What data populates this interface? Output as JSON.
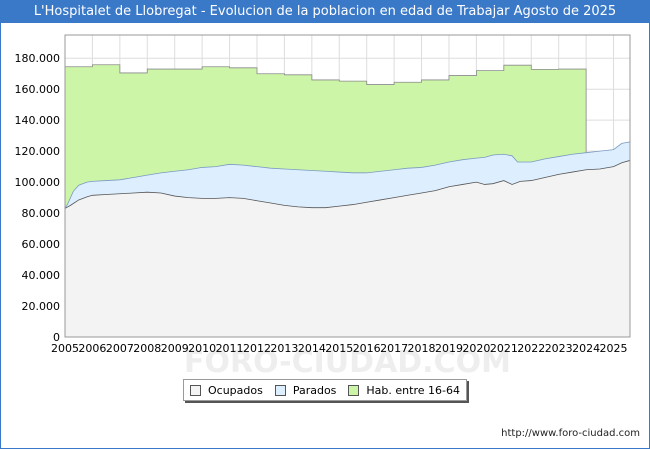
{
  "header": {
    "title": "L'Hospitalet de Llobregat - Evolucion de la poblacion en edad de Trabajar Agosto de 2025"
  },
  "footer": {
    "url": "http://www.foro-ciudad.com"
  },
  "watermark": "FORO-CIUDAD.COM",
  "colors": {
    "title_bg": "#3a78c8",
    "hab": "#ccf5a8",
    "hab_line": "#8a8a8a",
    "parados": "#ddeeff",
    "parados_line": "#7a9ac0",
    "ocupados": "#f3f3f3",
    "ocupados_line": "#555555"
  },
  "legend": [
    {
      "label": "Ocupados",
      "color": "#f3f3f3"
    },
    {
      "label": "Parados",
      "color": "#ddeeff"
    },
    {
      "label": "Hab. entre 16-64",
      "color": "#ccf5a8"
    }
  ],
  "chart_data": {
    "type": "area",
    "title": "L'Hospitalet de Llobregat - Evolucion de la poblacion en edad de Trabajar Agosto de 2025",
    "x_ticks": [
      "2005",
      "2006",
      "2007",
      "2008",
      "2009",
      "2010",
      "2011",
      "2012",
      "2013",
      "2014",
      "2015",
      "2016",
      "2017",
      "2018",
      "2019",
      "2020",
      "2021",
      "2022",
      "2023",
      "2024",
      "2025"
    ],
    "x_range": [
      2005,
      2025.6
    ],
    "y_ticks": [
      "0",
      "20.000",
      "40.000",
      "60.000",
      "80.000",
      "100.000",
      "120.000",
      "140.000",
      "160.000",
      "180.000"
    ],
    "ylim": [
      0,
      195000
    ],
    "grid": true,
    "series": [
      {
        "name": "Hab. entre 16-64",
        "kind": "annual-steps",
        "years": [
          2005,
          2006,
          2007,
          2008,
          2009,
          2010,
          2011,
          2012,
          2013,
          2014,
          2015,
          2016,
          2017,
          2018,
          2019,
          2020,
          2021,
          2022,
          2023
        ],
        "values": [
          174500,
          175800,
          170500,
          173000,
          173000,
          174500,
          173800,
          170000,
          169300,
          166000,
          165200,
          163000,
          164500,
          166000,
          168800,
          172000,
          175500,
          172800,
          173000
        ]
      },
      {
        "name": "Parados",
        "kind": "total",
        "x": [
          2005.0,
          2005.1,
          2005.3,
          2005.5,
          2005.8,
          2006.0,
          2006.5,
          2007.0,
          2007.5,
          2008.0,
          2008.5,
          2009.0,
          2009.5,
          2010.0,
          2010.5,
          2011.0,
          2011.5,
          2012.0,
          2012.5,
          2013.0,
          2013.5,
          2014.0,
          2014.5,
          2015.0,
          2015.5,
          2016.0,
          2016.5,
          2017.0,
          2017.5,
          2018.0,
          2018.5,
          2019.0,
          2019.5,
          2020.0,
          2020.3,
          2020.6,
          2021.0,
          2021.3,
          2021.5,
          2022.0,
          2022.5,
          2023.0,
          2023.5,
          2024.0,
          2024.5,
          2025.0,
          2025.3,
          2025.6
        ],
        "values": [
          83000,
          86000,
          94000,
          98000,
          100000,
          100500,
          101000,
          101500,
          103000,
          104500,
          106000,
          107000,
          108000,
          109500,
          110000,
          111500,
          111000,
          110000,
          109000,
          108500,
          108000,
          107500,
          107000,
          106500,
          106000,
          106000,
          107000,
          108000,
          109000,
          109500,
          111000,
          113000,
          114500,
          115500,
          116000,
          117500,
          118000,
          117000,
          113000,
          113000,
          115000,
          116500,
          118000,
          119000,
          120000,
          121000,
          125000,
          126000
        ]
      },
      {
        "name": "Ocupados",
        "x": [
          2005.0,
          2005.2,
          2005.5,
          2005.8,
          2006.0,
          2006.5,
          2007.0,
          2007.5,
          2008.0,
          2008.5,
          2009.0,
          2009.5,
          2010.0,
          2010.5,
          2011.0,
          2011.5,
          2012.0,
          2012.5,
          2013.0,
          2013.5,
          2014.0,
          2014.5,
          2015.0,
          2015.5,
          2016.0,
          2016.5,
          2017.0,
          2017.5,
          2018.0,
          2018.5,
          2019.0,
          2019.5,
          2020.0,
          2020.3,
          2020.6,
          2021.0,
          2021.3,
          2021.6,
          2022.0,
          2022.5,
          2023.0,
          2023.5,
          2024.0,
          2024.5,
          2025.0,
          2025.3,
          2025.6
        ],
        "values": [
          83000,
          85000,
          88500,
          90500,
          91500,
          92000,
          92500,
          93000,
          93500,
          93000,
          91000,
          90000,
          89500,
          89500,
          90000,
          89500,
          88000,
          86500,
          85000,
          84000,
          83500,
          83500,
          84500,
          85500,
          87000,
          88500,
          90000,
          91500,
          93000,
          94500,
          97000,
          98500,
          100000,
          98500,
          99000,
          101000,
          98500,
          100500,
          101000,
          103000,
          105000,
          106500,
          108000,
          108500,
          110000,
          112500,
          114000
        ]
      }
    ]
  }
}
